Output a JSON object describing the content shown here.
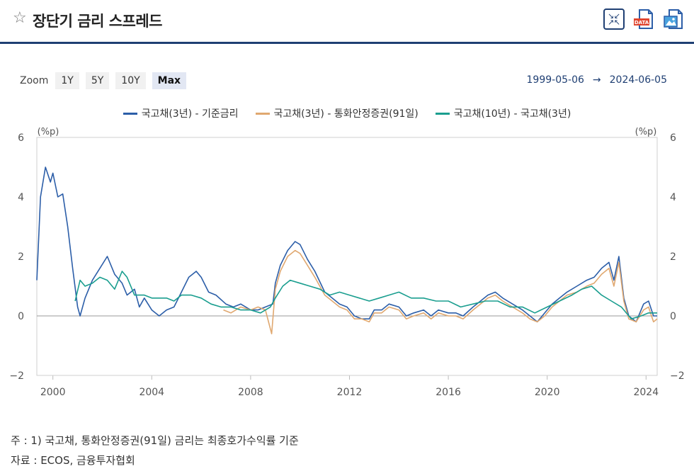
{
  "header": {
    "title": "장단기 금리 스프레드"
  },
  "icons": [
    "star-icon",
    "collapse-icon",
    "data-download-icon",
    "image-download-icon"
  ],
  "zoom": {
    "label": "Zoom",
    "buttons": [
      "1Y",
      "5Y",
      "10Y",
      "Max"
    ],
    "active": "Max"
  },
  "range": {
    "start": "1999-05-06",
    "arrow": "→",
    "end": "2024-06-05"
  },
  "notes": {
    "line1": "주 : 1) 국고채, 통화안정증권(91일) 금리는 최종호가수익률 기준",
    "line2": "자료 : ECOS, 금융투자협회"
  },
  "chart_data": {
    "type": "line",
    "unit_left": "(%p)",
    "unit_right": "(%p)",
    "ylim": [
      -2,
      6
    ],
    "yticks": [
      -2,
      0,
      2,
      4,
      6
    ],
    "xlim": [
      1999.35,
      2024.45
    ],
    "xticks": [
      2000,
      2004,
      2008,
      2012,
      2016,
      2020,
      2024
    ],
    "legend_position": "top-center",
    "series": [
      {
        "name": "국고채(3년) - 기준금리",
        "color": "#2c5ea8",
        "x": [
          1999.35,
          1999.5,
          1999.7,
          1999.9,
          2000.0,
          2000.2,
          2000.4,
          2000.6,
          2000.8,
          2001.0,
          2001.1,
          2001.3,
          2001.6,
          2001.9,
          2002.2,
          2002.5,
          2002.8,
          2003.0,
          2003.3,
          2003.5,
          2003.7,
          2004.0,
          2004.3,
          2004.6,
          2004.9,
          2005.2,
          2005.5,
          2005.8,
          2006.0,
          2006.3,
          2006.6,
          2007.0,
          2007.3,
          2007.6,
          2008.0,
          2008.3,
          2008.6,
          2008.9,
          2009.0,
          2009.2,
          2009.5,
          2009.8,
          2010.0,
          2010.3,
          2010.6,
          2011.0,
          2011.3,
          2011.6,
          2011.9,
          2012.2,
          2012.5,
          2012.8,
          2013.0,
          2013.3,
          2013.6,
          2014.0,
          2014.3,
          2014.6,
          2015.0,
          2015.3,
          2015.6,
          2016.0,
          2016.3,
          2016.6,
          2017.0,
          2017.3,
          2017.6,
          2017.9,
          2018.2,
          2018.6,
          2019.0,
          2019.3,
          2019.6,
          2019.9,
          2020.2,
          2020.5,
          2020.8,
          2021.2,
          2021.6,
          2021.9,
          2022.2,
          2022.5,
          2022.7,
          2022.9,
          2023.1,
          2023.3,
          2023.6,
          2023.9,
          2024.1,
          2024.3,
          2024.45
        ],
        "y": [
          1.2,
          4.0,
          5.0,
          4.5,
          4.8,
          4.0,
          4.1,
          3.0,
          1.6,
          0.3,
          0.0,
          0.6,
          1.2,
          1.6,
          2.0,
          1.4,
          1.1,
          0.7,
          0.9,
          0.3,
          0.6,
          0.2,
          0.0,
          0.2,
          0.3,
          0.8,
          1.3,
          1.5,
          1.3,
          0.8,
          0.7,
          0.4,
          0.3,
          0.4,
          0.2,
          0.2,
          0.3,
          0.4,
          1.1,
          1.7,
          2.2,
          2.5,
          2.4,
          1.9,
          1.5,
          0.8,
          0.6,
          0.4,
          0.3,
          0.0,
          -0.1,
          -0.1,
          0.2,
          0.2,
          0.4,
          0.3,
          0.0,
          0.1,
          0.2,
          0.0,
          0.2,
          0.1,
          0.1,
          0.0,
          0.3,
          0.5,
          0.7,
          0.8,
          0.6,
          0.4,
          0.2,
          0.0,
          -0.2,
          0.1,
          0.4,
          0.6,
          0.8,
          1.0,
          1.2,
          1.3,
          1.6,
          1.8,
          1.2,
          2.0,
          0.6,
          0.0,
          -0.2,
          0.4,
          0.5,
          0.0,
          0.0
        ]
      },
      {
        "name": "국고채(3년) - 통화안정증권(91일)",
        "color": "#e0a870",
        "x": [
          2006.9,
          2007.2,
          2007.6,
          2008.0,
          2008.3,
          2008.6,
          2008.85,
          2009.0,
          2009.2,
          2009.5,
          2009.8,
          2010.0,
          2010.3,
          2010.6,
          2011.0,
          2011.3,
          2011.6,
          2011.9,
          2012.2,
          2012.5,
          2012.8,
          2013.0,
          2013.3,
          2013.6,
          2014.0,
          2014.3,
          2014.6,
          2015.0,
          2015.3,
          2015.6,
          2016.0,
          2016.3,
          2016.6,
          2017.0,
          2017.3,
          2017.6,
          2017.9,
          2018.2,
          2018.6,
          2019.0,
          2019.3,
          2019.6,
          2019.9,
          2020.2,
          2020.5,
          2020.8,
          2021.2,
          2021.6,
          2021.9,
          2022.2,
          2022.5,
          2022.7,
          2022.9,
          2023.1,
          2023.3,
          2023.6,
          2023.9,
          2024.1,
          2024.3,
          2024.45
        ],
        "y": [
          0.2,
          0.1,
          0.3,
          0.2,
          0.3,
          0.2,
          -0.6,
          0.9,
          1.5,
          2.0,
          2.2,
          2.1,
          1.7,
          1.3,
          0.7,
          0.5,
          0.3,
          0.2,
          -0.1,
          -0.1,
          -0.2,
          0.1,
          0.1,
          0.3,
          0.2,
          -0.1,
          0.0,
          0.1,
          -0.1,
          0.1,
          0.0,
          0.0,
          -0.1,
          0.2,
          0.4,
          0.6,
          0.7,
          0.5,
          0.3,
          0.1,
          -0.1,
          -0.2,
          0.0,
          0.3,
          0.5,
          0.7,
          0.8,
          1.0,
          1.1,
          1.4,
          1.6,
          1.0,
          1.8,
          0.5,
          -0.1,
          -0.2,
          0.2,
          0.3,
          -0.2,
          -0.1
        ]
      },
      {
        "name": "국고채(10년) - 국고채(3년)",
        "color": "#1a9e8f",
        "x": [
          2000.9,
          2001.1,
          2001.3,
          2001.6,
          2001.9,
          2002.2,
          2002.5,
          2002.8,
          2003.0,
          2003.3,
          2003.7,
          2004.0,
          2004.3,
          2004.6,
          2004.9,
          2005.2,
          2005.6,
          2006.0,
          2006.4,
          2006.8,
          2007.2,
          2007.6,
          2008.0,
          2008.4,
          2008.8,
          2009.0,
          2009.3,
          2009.6,
          2010.0,
          2010.4,
          2010.8,
          2011.2,
          2011.6,
          2012.0,
          2012.4,
          2012.8,
          2013.2,
          2013.6,
          2014.0,
          2014.5,
          2015.0,
          2015.5,
          2016.0,
          2016.5,
          2017.0,
          2017.5,
          2018.0,
          2018.5,
          2019.0,
          2019.5,
          2020.0,
          2020.5,
          2021.0,
          2021.4,
          2021.8,
          2022.2,
          2022.6,
          2023.0,
          2023.4,
          2023.8,
          2024.1,
          2024.45
        ],
        "y": [
          0.5,
          1.2,
          1.0,
          1.1,
          1.3,
          1.2,
          0.9,
          1.5,
          1.3,
          0.7,
          0.7,
          0.6,
          0.6,
          0.6,
          0.5,
          0.7,
          0.7,
          0.6,
          0.4,
          0.3,
          0.3,
          0.2,
          0.2,
          0.1,
          0.3,
          0.6,
          1.0,
          1.2,
          1.1,
          1.0,
          0.9,
          0.7,
          0.8,
          0.7,
          0.6,
          0.5,
          0.6,
          0.7,
          0.8,
          0.6,
          0.6,
          0.5,
          0.5,
          0.3,
          0.4,
          0.5,
          0.5,
          0.3,
          0.3,
          0.1,
          0.3,
          0.5,
          0.7,
          0.9,
          1.0,
          0.7,
          0.5,
          0.3,
          -0.1,
          0.0,
          0.1,
          0.1
        ]
      }
    ]
  }
}
